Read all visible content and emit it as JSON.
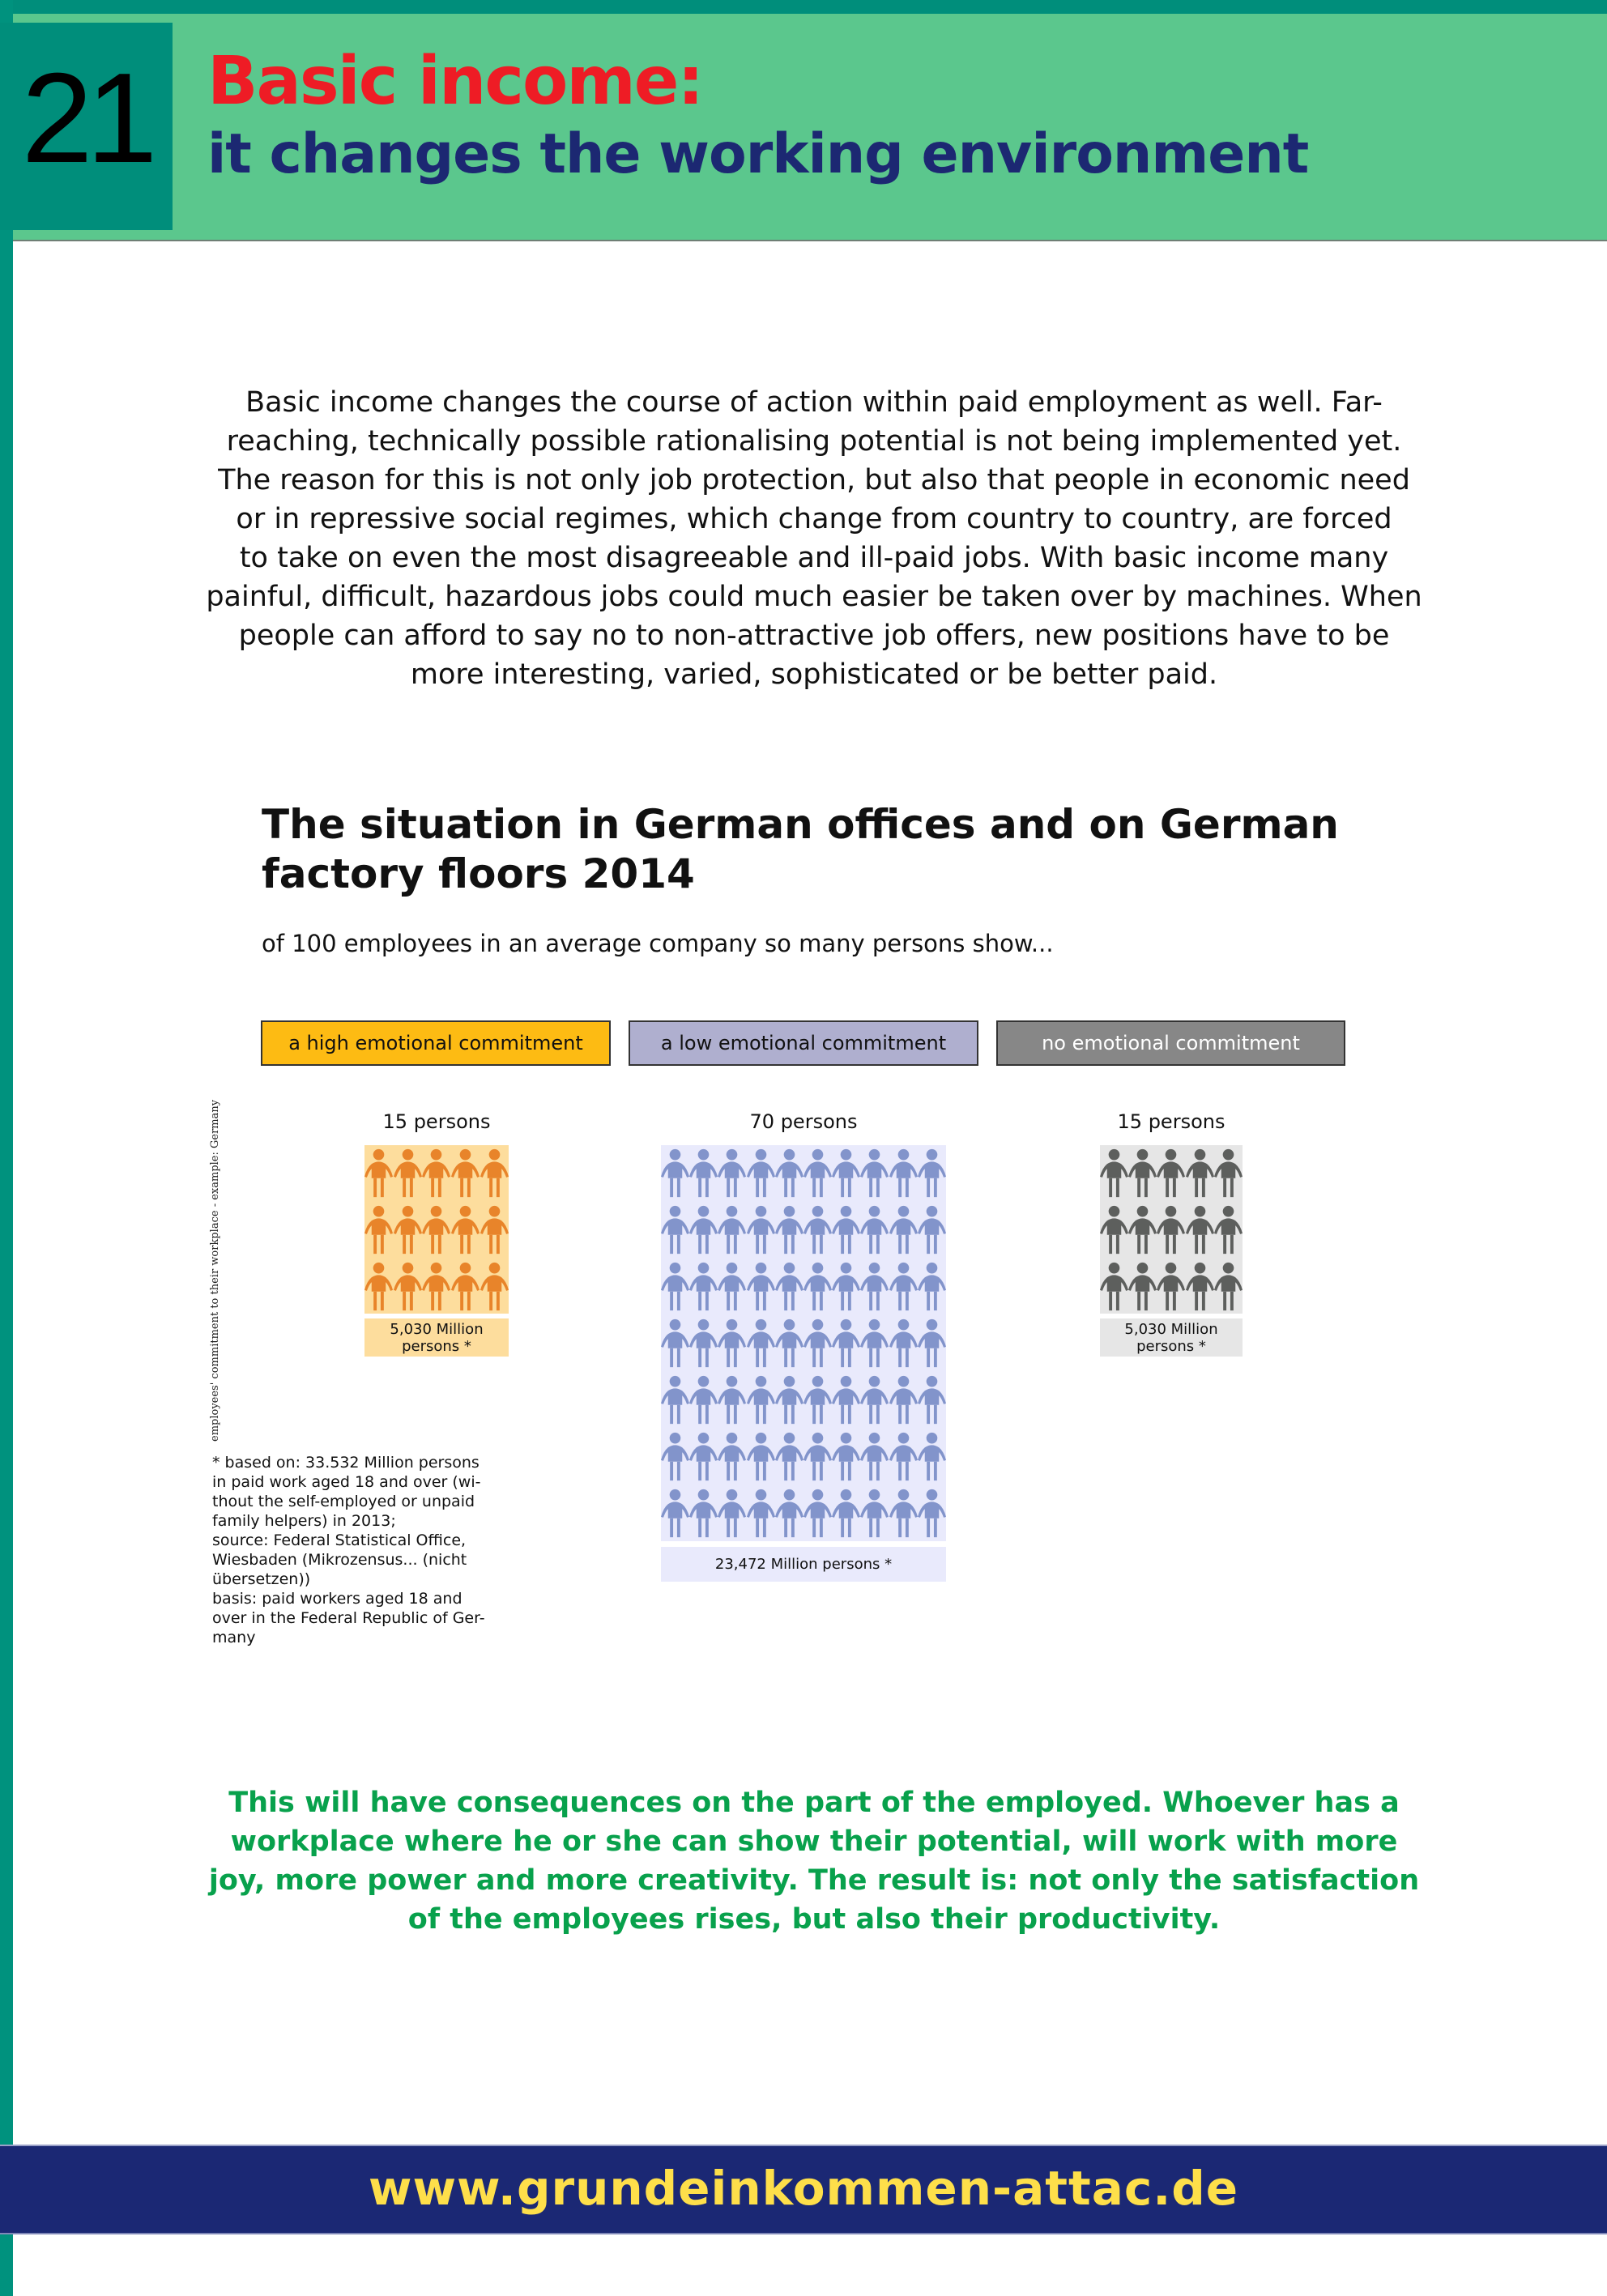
{
  "header": {
    "number": "21",
    "title": "Basic income:",
    "subtitle": "it changes the working environment"
  },
  "intro": {
    "lines": [
      "Basic income changes the course of action within paid employment as well. Far-",
      "reaching, technically possible rationalising potential is not being implemented yet.",
      "The reason for this is not only job protection, but also that people in economic need",
      "or in repressive social regimes, which change from country to country, are forced",
      "to take on even the most disagreeable and ill-paid jobs. With basic income many",
      "painful, difficult, hazardous jobs could much easier be taken over by machines. When",
      "people can afford to say no to non-attractive job offers, new positions have to be",
      "more interesting, varied, sophisticated or be better paid."
    ]
  },
  "chart": {
    "title_lines": [
      "The situation in German offices and on German",
      "factory floors 2014"
    ],
    "subtitle": "of 100 employees in an average company so many persons show...",
    "vertical_label": "employees' commitment to their workplace - example: Germany",
    "groups": [
      {
        "legend": "a high emotional commitment",
        "count_label": "15 persons",
        "count": 15,
        "total_line1": "5,030 Million",
        "total_line2": "persons *",
        "color": "#e8842a",
        "bg": "#fddd9d"
      },
      {
        "legend": "a low emotional commitment",
        "count_label": "70 persons",
        "count": 70,
        "total_line1": "23,472 Million persons *",
        "color": "#8294cb",
        "bg": "#e9eafc"
      },
      {
        "legend": "no emotional commitment",
        "count_label": "15 persons",
        "count": 15,
        "total_line1": "5,030 Million",
        "total_line2": "persons *",
        "color": "#5d5f5d",
        "bg": "#e6e6e6"
      }
    ],
    "footnote_lines": [
      "* based on: 33.532 Million persons",
      "in paid work  aged 18 and over (wi-",
      "thout the self-employed or unpaid",
      "family helpers) in 2013;",
      "source: Federal Statistical Office,",
      "Wiesbaden (Mikrozensus... (nicht",
      "übersetzen))",
      "basis: paid workers aged 18 and",
      "over in the Federal Republic of Ger-",
      "many"
    ]
  },
  "chart_data": {
    "type": "pictogram",
    "title": "The situation in German offices and on German factory floors 2014",
    "categories": [
      "a high emotional commitment",
      "a low emotional commitment",
      "no emotional commitment"
    ],
    "values": [
      15,
      70,
      15
    ],
    "unit": "persons of 100 employees",
    "totals_million_persons": [
      5.03,
      23.472,
      5.03
    ]
  },
  "conclusion": {
    "lines": [
      "This will have consequences on the part of the employed. Whoever has a",
      "workplace where he or she can show their potential, will work with more",
      "joy, more power and more creativity. The result is: not only the satisfaction",
      "of the employees rises, but also their productivity."
    ]
  },
  "footer": {
    "url": "www.grundeinkommen-attac.de"
  }
}
